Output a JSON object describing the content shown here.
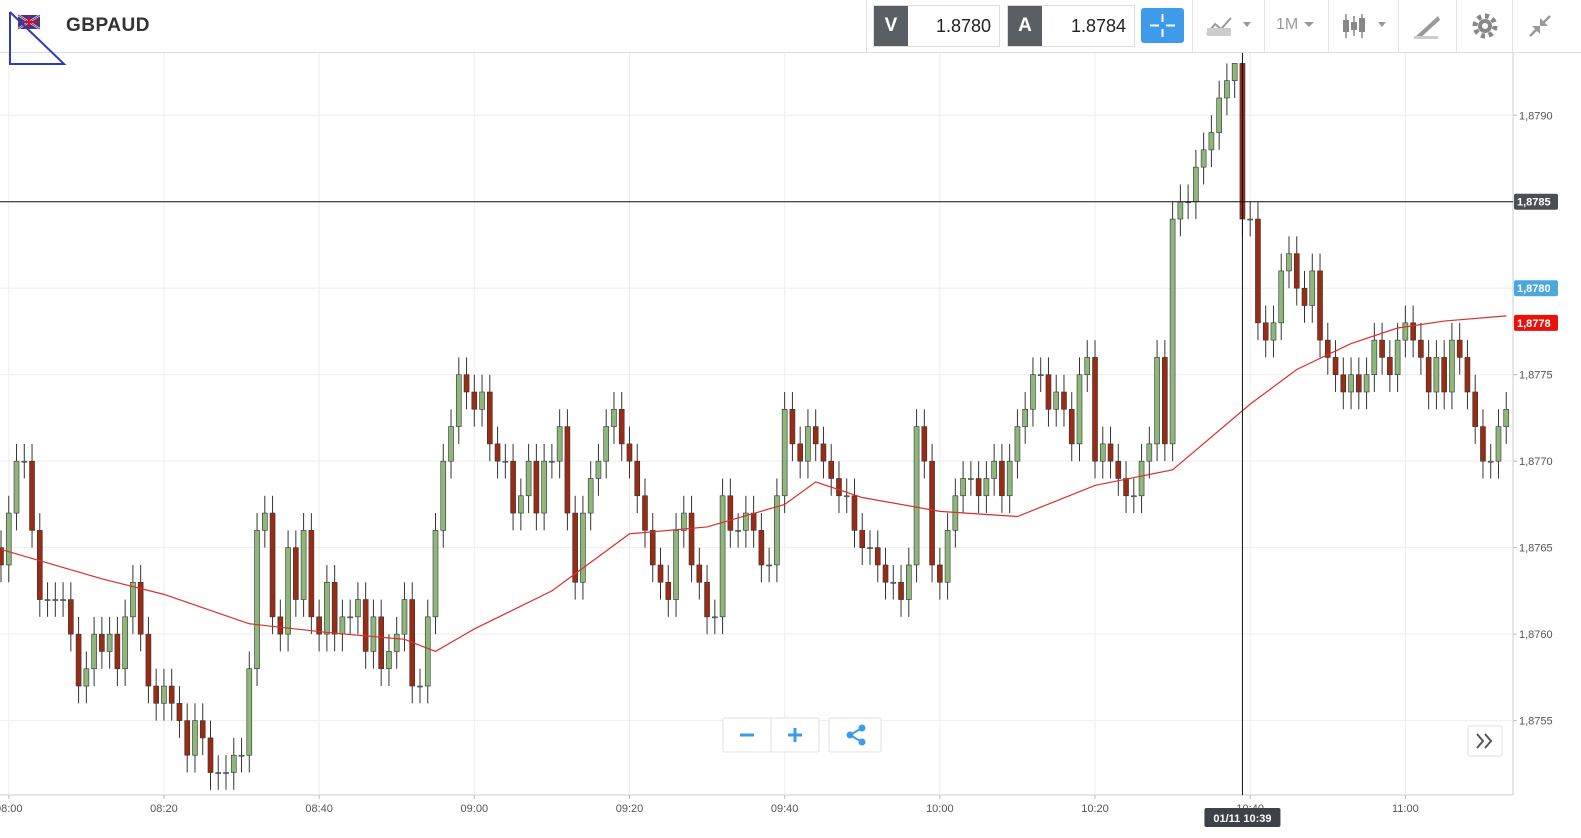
{
  "header": {
    "symbol": "GBPAUD",
    "bid_label": "V",
    "bid": "1.8780",
    "ask_label": "A",
    "ask": "1.8784",
    "timeframe": "1M"
  },
  "chart_data": {
    "type": "candlestick",
    "categories": [
      "07:59",
      "08:00",
      "08:01",
      "08:02",
      "08:03",
      "08:04",
      "08:05",
      "08:06",
      "08:07",
      "08:08",
      "08:09",
      "08:10",
      "08:11",
      "08:12",
      "08:13",
      "08:14",
      "08:15",
      "08:16",
      "08:17",
      "08:18",
      "08:19",
      "08:20",
      "08:21",
      "08:22",
      "08:23",
      "08:24",
      "08:25",
      "08:26",
      "08:27",
      "08:28",
      "08:29",
      "08:30",
      "08:31",
      "08:32",
      "08:33",
      "08:34",
      "08:35",
      "08:36",
      "08:37",
      "08:38",
      "08:39",
      "08:40",
      "08:41",
      "08:42",
      "08:43",
      "08:44",
      "08:45",
      "08:46",
      "08:47",
      "08:48",
      "08:49",
      "08:50",
      "08:51",
      "08:52",
      "08:53",
      "08:54",
      "08:55",
      "08:56",
      "08:57",
      "08:58",
      "08:59",
      "09:00",
      "09:01",
      "09:02",
      "09:03",
      "09:04",
      "09:05",
      "09:06",
      "09:07",
      "09:08",
      "09:09",
      "09:10",
      "09:11",
      "09:12",
      "09:13",
      "09:14",
      "09:15",
      "09:16",
      "09:17",
      "09:18",
      "09:19",
      "09:20",
      "09:21",
      "09:22",
      "09:23",
      "09:24",
      "09:25",
      "09:26",
      "09:27",
      "09:28",
      "09:29",
      "09:30",
      "09:31",
      "09:32",
      "09:33",
      "09:34",
      "09:35",
      "09:36",
      "09:37",
      "09:38",
      "09:39",
      "09:40",
      "09:41",
      "09:42",
      "09:43",
      "09:44",
      "09:45",
      "09:46",
      "09:47",
      "09:48",
      "09:49",
      "09:50",
      "09:51",
      "09:52",
      "09:53",
      "09:54",
      "09:55",
      "09:56",
      "09:57",
      "09:58",
      "09:59",
      "10:00",
      "10:01",
      "10:02",
      "10:03",
      "10:04",
      "10:05",
      "10:06",
      "10:07",
      "10:08",
      "10:09",
      "10:10",
      "10:11",
      "10:12",
      "10:13",
      "10:14",
      "10:15",
      "10:16",
      "10:17",
      "10:18",
      "10:19",
      "10:20",
      "10:21",
      "10:22",
      "10:23",
      "10:24",
      "10:25",
      "10:26",
      "10:27",
      "10:28",
      "10:29",
      "10:30",
      "10:31",
      "10:32",
      "10:33",
      "10:34",
      "10:35",
      "10:36",
      "10:37",
      "10:38",
      "10:39",
      "10:40",
      "10:41",
      "10:42",
      "10:43",
      "10:44",
      "10:45",
      "10:46",
      "10:47",
      "10:48",
      "10:49",
      "10:50",
      "10:51",
      "10:52",
      "10:53",
      "10:54",
      "10:55",
      "10:56",
      "10:57",
      "10:58",
      "10:59",
      "11:00",
      "11:01",
      "11:02",
      "11:03",
      "11:04",
      "11:05",
      "11:06",
      "11:07",
      "11:08",
      "11:09",
      "11:10",
      "11:11",
      "11:12",
      "11:13"
    ],
    "open": [
      1.8765,
      1.8764,
      1.8767,
      1.877,
      1.877,
      1.8766,
      1.8762,
      1.8762,
      1.8762,
      1.8762,
      1.876,
      1.8757,
      1.8758,
      1.876,
      1.8759,
      1.876,
      1.8758,
      1.8761,
      1.8763,
      1.876,
      1.8757,
      1.8756,
      1.8757,
      1.8756,
      1.8755,
      1.8753,
      1.8755,
      1.8754,
      1.8752,
      1.8752,
      1.8752,
      1.8753,
      1.8753,
      1.8758,
      1.8766,
      1.8767,
      1.8761,
      1.876,
      1.8765,
      1.8762,
      1.8766,
      1.8761,
      1.876,
      1.8763,
      1.876,
      1.8761,
      1.8761,
      1.8762,
      1.8759,
      1.8761,
      1.8758,
      1.8759,
      1.876,
      1.8762,
      1.8757,
      1.8757,
      1.8761,
      1.8766,
      1.877,
      1.8772,
      1.8775,
      1.8774,
      1.8773,
      1.8774,
      1.8771,
      1.877,
      1.877,
      1.8767,
      1.8768,
      1.877,
      1.8767,
      1.877,
      1.877,
      1.8772,
      1.8767,
      1.8763,
      1.8767,
      1.8769,
      1.877,
      1.8772,
      1.8773,
      1.8771,
      1.877,
      1.8768,
      1.8766,
      1.8764,
      1.8763,
      1.8762,
      1.8766,
      1.8767,
      1.8764,
      1.8763,
      1.8761,
      1.8761,
      1.8768,
      1.8766,
      1.8766,
      1.8767,
      1.8766,
      1.8764,
      1.8764,
      1.8768,
      1.8773,
      1.8771,
      1.877,
      1.8772,
      1.8771,
      1.877,
      1.8769,
      1.8768,
      1.8768,
      1.8766,
      1.8765,
      1.8765,
      1.8764,
      1.8763,
      1.8763,
      1.8762,
      1.8764,
      1.8772,
      1.877,
      1.8764,
      1.8763,
      1.8766,
      1.8768,
      1.8769,
      1.8769,
      1.8768,
      1.8769,
      1.877,
      1.8768,
      1.877,
      1.8772,
      1.8773,
      1.8775,
      1.8775,
      1.8773,
      1.8774,
      1.8773,
      1.8771,
      1.8775,
      1.8776,
      1.877,
      1.8771,
      1.877,
      1.8769,
      1.8768,
      1.8768,
      1.877,
      1.8771,
      1.8776,
      1.8771,
      1.8784,
      1.8785,
      1.8785,
      1.8787,
      1.8788,
      1.8789,
      1.8791,
      1.8792,
      1.8793,
      1.8784,
      1.8784,
      1.8778,
      1.8777,
      1.8778,
      1.8781,
      1.8782,
      1.878,
      1.8779,
      1.8781,
      1.8777,
      1.8776,
      1.8775,
      1.8774,
      1.8775,
      1.8774,
      1.8775,
      1.8777,
      1.8776,
      1.8775,
      1.8777,
      1.8778,
      1.8777,
      1.8776,
      1.8774,
      1.8776,
      1.8774,
      1.8777,
      1.8776,
      1.8774,
      1.8772,
      1.877,
      1.877,
      1.8772
    ],
    "high": [
      1.8766,
      1.8768,
      1.8771,
      1.8771,
      1.8771,
      1.8767,
      1.8763,
      1.8763,
      1.8763,
      1.8763,
      1.8761,
      1.8759,
      1.8761,
      1.8761,
      1.8761,
      1.8761,
      1.8762,
      1.8764,
      1.8764,
      1.8761,
      1.8758,
      1.8758,
      1.8758,
      1.8757,
      1.8756,
      1.8756,
      1.8756,
      1.8755,
      1.8753,
      1.8753,
      1.8754,
      1.8754,
      1.8759,
      1.8767,
      1.8768,
      1.8768,
      1.8762,
      1.8766,
      1.8766,
      1.8767,
      1.8767,
      1.8762,
      1.8764,
      1.8764,
      1.8762,
      1.8762,
      1.8763,
      1.8763,
      1.8762,
      1.8762,
      1.876,
      1.8761,
      1.8763,
      1.8763,
      1.8758,
      1.8762,
      1.8767,
      1.8771,
      1.8773,
      1.8776,
      1.8776,
      1.8775,
      1.8775,
      1.8775,
      1.8772,
      1.8771,
      1.8771,
      1.8769,
      1.8771,
      1.8771,
      1.8771,
      1.8771,
      1.8773,
      1.8773,
      1.8768,
      1.8768,
      1.877,
      1.8771,
      1.8773,
      1.8774,
      1.8774,
      1.8772,
      1.8771,
      1.8769,
      1.8767,
      1.8765,
      1.8764,
      1.8767,
      1.8768,
      1.8768,
      1.8765,
      1.8764,
      1.8762,
      1.8769,
      1.8769,
      1.8767,
      1.8768,
      1.8768,
      1.8767,
      1.8765,
      1.8769,
      1.8774,
      1.8774,
      1.8772,
      1.8773,
      1.8773,
      1.8772,
      1.8771,
      1.877,
      1.8769,
      1.8769,
      1.8767,
      1.8766,
      1.8766,
      1.8765,
      1.8764,
      1.8764,
      1.8765,
      1.8773,
      1.8773,
      1.8771,
      1.8765,
      1.8767,
      1.8769,
      1.877,
      1.877,
      1.877,
      1.877,
      1.8771,
      1.8771,
      1.8771,
      1.8773,
      1.8774,
      1.8776,
      1.8776,
      1.8776,
      1.8775,
      1.8775,
      1.8774,
      1.8776,
      1.8777,
      1.8777,
      1.8772,
      1.8772,
      1.8771,
      1.877,
      1.8769,
      1.8771,
      1.8772,
      1.8777,
      1.8777,
      1.8785,
      1.8786,
      1.8786,
      1.8788,
      1.8789,
      1.879,
      1.8792,
      1.8793,
      1.8793,
      1.8793,
      1.8785,
      1.8785,
      1.8779,
      1.8779,
      1.8782,
      1.8783,
      1.8783,
      1.8781,
      1.8782,
      1.8782,
      1.8778,
      1.8777,
      1.8776,
      1.8776,
      1.8776,
      1.8776,
      1.8778,
      1.8778,
      1.8777,
      1.8778,
      1.8779,
      1.8779,
      1.8778,
      1.8777,
      1.8777,
      1.8777,
      1.8778,
      1.8778,
      1.8777,
      1.8775,
      1.8773,
      1.8771,
      1.8773,
      1.8774
    ],
    "low": [
      1.8763,
      1.8763,
      1.8766,
      1.8769,
      1.8765,
      1.8761,
      1.8761,
      1.8761,
      1.8761,
      1.8759,
      1.8756,
      1.8756,
      1.8757,
      1.8758,
      1.8758,
      1.8757,
      1.8757,
      1.876,
      1.8759,
      1.8756,
      1.8755,
      1.8755,
      1.8755,
      1.8754,
      1.8752,
      1.8752,
      1.8753,
      1.8751,
      1.8751,
      1.8751,
      1.8751,
      1.8752,
      1.8752,
      1.8757,
      1.8765,
      1.876,
      1.8759,
      1.8759,
      1.8761,
      1.8761,
      1.876,
      1.8759,
      1.8759,
      1.8759,
      1.8759,
      1.876,
      1.876,
      1.8758,
      1.8758,
      1.8757,
      1.8757,
      1.8758,
      1.8759,
      1.8756,
      1.8756,
      1.8756,
      1.876,
      1.8765,
      1.8769,
      1.8771,
      1.8773,
      1.8772,
      1.8772,
      1.877,
      1.8769,
      1.8769,
      1.8766,
      1.8766,
      1.8767,
      1.8766,
      1.8766,
      1.8769,
      1.8769,
      1.8766,
      1.8762,
      1.8762,
      1.8766,
      1.8768,
      1.8769,
      1.8771,
      1.877,
      1.8769,
      1.8767,
      1.8765,
      1.8763,
      1.8762,
      1.8761,
      1.8761,
      1.8765,
      1.8763,
      1.8762,
      1.876,
      1.876,
      1.876,
      1.8765,
      1.8765,
      1.8765,
      1.8765,
      1.8763,
      1.8763,
      1.8763,
      1.8767,
      1.877,
      1.8769,
      1.8769,
      1.877,
      1.8769,
      1.8768,
      1.8767,
      1.8767,
      1.8765,
      1.8764,
      1.8764,
      1.8763,
      1.8762,
      1.8762,
      1.8761,
      1.8761,
      1.8763,
      1.8769,
      1.8763,
      1.8762,
      1.8762,
      1.8765,
      1.8767,
      1.8768,
      1.8767,
      1.8767,
      1.8768,
      1.8767,
      1.8767,
      1.8769,
      1.8771,
      1.8772,
      1.8774,
      1.8772,
      1.8772,
      1.8772,
      1.877,
      1.877,
      1.8774,
      1.8769,
      1.8769,
      1.8769,
      1.8768,
      1.8767,
      1.8767,
      1.8767,
      1.8769,
      1.877,
      1.877,
      1.877,
      1.8783,
      1.8784,
      1.8784,
      1.8786,
      1.8787,
      1.8788,
      1.879,
      1.8791,
      1.8783,
      1.8783,
      1.8777,
      1.8776,
      1.8776,
      1.8777,
      1.878,
      1.8779,
      1.8778,
      1.8778,
      1.8776,
      1.8775,
      1.8774,
      1.8773,
      1.8773,
      1.8773,
      1.8773,
      1.8774,
      1.8775,
      1.8774,
      1.8774,
      1.8776,
      1.8776,
      1.8775,
      1.8773,
      1.8773,
      1.8773,
      1.8773,
      1.8775,
      1.8773,
      1.8771,
      1.8769,
      1.8769,
      1.8769,
      1.8771
    ],
    "close": [
      1.8764,
      1.8767,
      1.877,
      1.877,
      1.8766,
      1.8762,
      1.8762,
      1.8762,
      1.8762,
      1.876,
      1.8757,
      1.8758,
      1.876,
      1.8759,
      1.876,
      1.8758,
      1.8761,
      1.8763,
      1.876,
      1.8757,
      1.8756,
      1.8757,
      1.8756,
      1.8755,
      1.8753,
      1.8755,
      1.8754,
      1.8752,
      1.8752,
      1.8752,
      1.8753,
      1.8753,
      1.8758,
      1.8766,
      1.8767,
      1.8761,
      1.876,
      1.8765,
      1.8762,
      1.8766,
      1.8761,
      1.876,
      1.8763,
      1.876,
      1.8761,
      1.8761,
      1.8762,
      1.8759,
      1.8761,
      1.8758,
      1.8759,
      1.876,
      1.8762,
      1.8757,
      1.8757,
      1.8761,
      1.8766,
      1.877,
      1.8772,
      1.8775,
      1.8774,
      1.8773,
      1.8774,
      1.8771,
      1.877,
      1.877,
      1.8767,
      1.8768,
      1.877,
      1.8767,
      1.877,
      1.877,
      1.8772,
      1.8767,
      1.8763,
      1.8767,
      1.8769,
      1.877,
      1.8772,
      1.8773,
      1.8771,
      1.877,
      1.8768,
      1.8766,
      1.8764,
      1.8763,
      1.8762,
      1.8766,
      1.8767,
      1.8764,
      1.8763,
      1.8761,
      1.8761,
      1.8768,
      1.8766,
      1.8766,
      1.8767,
      1.8766,
      1.8764,
      1.8764,
      1.8768,
      1.8773,
      1.8771,
      1.877,
      1.8772,
      1.8771,
      1.877,
      1.8769,
      1.8768,
      1.8768,
      1.8766,
      1.8765,
      1.8765,
      1.8764,
      1.8763,
      1.8763,
      1.8762,
      1.8764,
      1.8772,
      1.877,
      1.8764,
      1.8763,
      1.8766,
      1.8768,
      1.8769,
      1.8769,
      1.8768,
      1.8769,
      1.877,
      1.8768,
      1.877,
      1.8772,
      1.8773,
      1.8775,
      1.8775,
      1.8773,
      1.8774,
      1.8773,
      1.8771,
      1.8775,
      1.8776,
      1.877,
      1.8771,
      1.877,
      1.8769,
      1.8768,
      1.8768,
      1.877,
      1.8771,
      1.8776,
      1.8771,
      1.8784,
      1.8785,
      1.8785,
      1.8787,
      1.8788,
      1.8789,
      1.8791,
      1.8792,
      1.8793,
      1.8784,
      1.8784,
      1.8778,
      1.8777,
      1.8778,
      1.8781,
      1.8782,
      1.878,
      1.8779,
      1.8781,
      1.8777,
      1.8776,
      1.8775,
      1.8774,
      1.8775,
      1.8774,
      1.8775,
      1.8777,
      1.8776,
      1.8775,
      1.8777,
      1.8778,
      1.8777,
      1.8776,
      1.8774,
      1.8776,
      1.8774,
      1.8777,
      1.8776,
      1.8774,
      1.8772,
      1.877,
      1.877,
      1.8772,
      1.8773
    ],
    "up_color": "#8db87a",
    "down_color": "#9a2c16",
    "wick_color": "#333333",
    "moving_average": {
      "color": "#d9302a",
      "x": [
        "07:59",
        "08:12",
        "08:20",
        "08:31",
        "08:41",
        "08:51",
        "08:55",
        "09:00",
        "09:10",
        "09:20",
        "09:30",
        "09:40",
        "09:44",
        "09:50",
        "10:00",
        "10:10",
        "10:20",
        "10:30",
        "10:40",
        "10:46",
        "10:53",
        "10:59",
        "11:05",
        "11:13"
      ],
      "values": [
        1.87649,
        1.87632,
        1.87623,
        1.87606,
        1.87601,
        1.87597,
        1.8759,
        1.87603,
        1.87625,
        1.87658,
        1.87662,
        1.87675,
        1.87688,
        1.87679,
        1.87671,
        1.87668,
        1.87686,
        1.87695,
        1.87733,
        1.87753,
        1.87768,
        1.87777,
        1.87781,
        1.87784
      ]
    },
    "ylim": [
      1.87507,
      1.87936
    ],
    "yticks": [
      {
        "value": 1.8755,
        "label": "1,8755"
      },
      {
        "value": 1.876,
        "label": "1,8760"
      },
      {
        "value": 1.8765,
        "label": "1,8765"
      },
      {
        "value": 1.877,
        "label": "1,8770"
      },
      {
        "value": 1.8775,
        "label": "1,8775"
      },
      {
        "value": 1.878,
        "label": "1,8780"
      },
      {
        "value": 1.8785,
        "label": "1,8785"
      },
      {
        "value": 1.879,
        "label": "1,8790"
      }
    ],
    "xticks": [
      "08:00",
      "08:20",
      "08:40",
      "09:00",
      "09:20",
      "09:40",
      "10:00",
      "10:20",
      "10:40",
      "11:00"
    ],
    "grid": true,
    "crosshair": {
      "x": "10:39",
      "x_label": "01/11 10:39",
      "y": 1.8785,
      "y_label": "1,8785"
    },
    "price_markers": [
      {
        "value": 1.878,
        "label": "1,8780",
        "color": "#4aa8dc"
      },
      {
        "value": 1.8778,
        "label": "1,8778",
        "color": "#e8120c"
      }
    ]
  }
}
